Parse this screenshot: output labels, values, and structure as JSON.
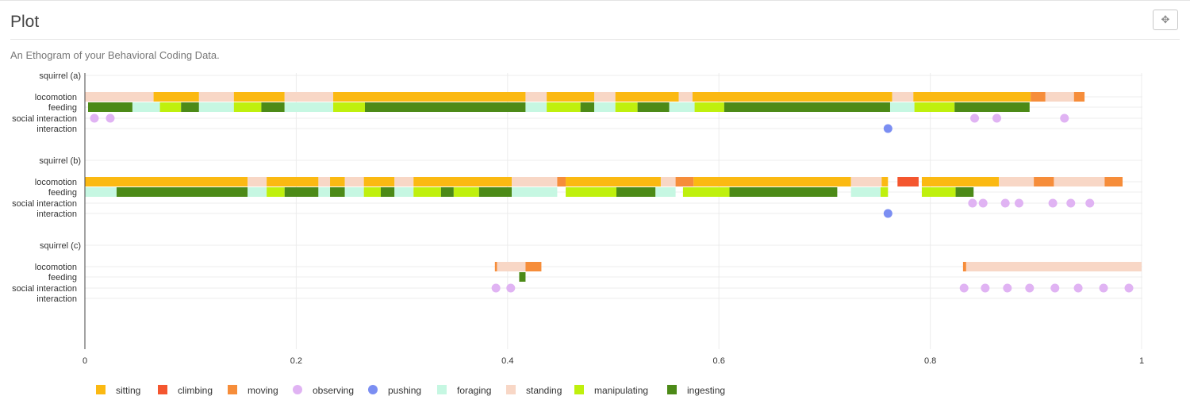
{
  "panel": {
    "title": "Plot",
    "subtitle": "An Ethogram of your Behavioral Coding Data.",
    "expand_icon": "move-arrows-icon"
  },
  "chart_data": {
    "type": "ethogram",
    "xlim": [
      0,
      1
    ],
    "x_ticks": [
      0,
      0.2,
      0.4,
      0.6,
      0.8,
      1
    ],
    "x_tick_labels": [
      "0",
      "0.2",
      "0.4",
      "0.6",
      "0.8",
      "1"
    ],
    "grid": true,
    "legend_placement": "bottom",
    "colors": {
      "sitting": "#fbb912",
      "climbing": "#f4562f",
      "moving": "#f68d3a",
      "observing": "#e0b3f3",
      "pushing": "#7b8ef2",
      "foraging": "#c6f7e2",
      "standing": "#f8d7c6",
      "manipulating": "#bff00d",
      "ingesting": "#4c8a17"
    },
    "legend": [
      {
        "key": "sitting",
        "label": "sitting",
        "shape": "square"
      },
      {
        "key": "climbing",
        "label": "climbing",
        "shape": "square"
      },
      {
        "key": "moving",
        "label": "moving",
        "shape": "square"
      },
      {
        "key": "observing",
        "label": "observing",
        "shape": "circle"
      },
      {
        "key": "pushing",
        "label": "pushing",
        "shape": "circle"
      },
      {
        "key": "foraging",
        "label": "foraging",
        "shape": "square"
      },
      {
        "key": "standing",
        "label": "standing",
        "shape": "square"
      },
      {
        "key": "manipulating",
        "label": "manipulating",
        "shape": "square"
      },
      {
        "key": "ingesting",
        "label": "ingesting",
        "shape": "square"
      }
    ],
    "subjects": [
      {
        "name": "squirrel (a)",
        "rows": [
          "locomotion",
          "feeding",
          "social interaction",
          "interaction"
        ],
        "bars": {
          "locomotion": [
            [
              0.0,
              0.065,
              "standing"
            ],
            [
              0.065,
              0.108,
              "sitting"
            ],
            [
              0.108,
              0.141,
              "standing"
            ],
            [
              0.141,
              0.189,
              "sitting"
            ],
            [
              0.189,
              0.235,
              "standing"
            ],
            [
              0.235,
              0.417,
              "sitting"
            ],
            [
              0.417,
              0.437,
              "standing"
            ],
            [
              0.437,
              0.482,
              "sitting"
            ],
            [
              0.482,
              0.502,
              "standing"
            ],
            [
              0.502,
              0.562,
              "sitting"
            ],
            [
              0.562,
              0.575,
              "standing"
            ],
            [
              0.575,
              0.764,
              "sitting"
            ],
            [
              0.764,
              0.784,
              "standing"
            ],
            [
              0.784,
              0.895,
              "sitting"
            ],
            [
              0.895,
              0.909,
              "moving"
            ],
            [
              0.909,
              0.936,
              "standing"
            ],
            [
              0.936,
              0.946,
              "moving"
            ]
          ],
          "feeding": [
            [
              0.003,
              0.045,
              "ingesting"
            ],
            [
              0.045,
              0.071,
              "foraging"
            ],
            [
              0.071,
              0.091,
              "manipulating"
            ],
            [
              0.091,
              0.108,
              "ingesting"
            ],
            [
              0.108,
              0.141,
              "foraging"
            ],
            [
              0.141,
              0.167,
              "manipulating"
            ],
            [
              0.167,
              0.189,
              "ingesting"
            ],
            [
              0.189,
              0.235,
              "foraging"
            ],
            [
              0.235,
              0.265,
              "manipulating"
            ],
            [
              0.265,
              0.417,
              "ingesting"
            ],
            [
              0.417,
              0.437,
              "foraging"
            ],
            [
              0.437,
              0.469,
              "manipulating"
            ],
            [
              0.469,
              0.482,
              "ingesting"
            ],
            [
              0.482,
              0.502,
              "foraging"
            ],
            [
              0.502,
              0.523,
              "manipulating"
            ],
            [
              0.523,
              0.553,
              "ingesting"
            ],
            [
              0.553,
              0.577,
              "foraging"
            ],
            [
              0.577,
              0.605,
              "manipulating"
            ],
            [
              0.605,
              0.762,
              "ingesting"
            ],
            [
              0.762,
              0.785,
              "foraging"
            ],
            [
              0.785,
              0.823,
              "manipulating"
            ],
            [
              0.823,
              0.894,
              "ingesting"
            ]
          ]
        },
        "points": {
          "social interaction": [
            [
              0.009,
              "observing"
            ],
            [
              0.024,
              "observing"
            ],
            [
              0.842,
              "observing"
            ],
            [
              0.863,
              "observing"
            ],
            [
              0.927,
              "observing"
            ]
          ],
          "interaction": [
            [
              0.76,
              "pushing"
            ]
          ]
        }
      },
      {
        "name": "squirrel (b)",
        "rows": [
          "locomotion",
          "feeding",
          "social interaction",
          "interaction"
        ],
        "bars": {
          "locomotion": [
            [
              0.0,
              0.154,
              "sitting"
            ],
            [
              0.154,
              0.172,
              "standing"
            ],
            [
              0.172,
              0.221,
              "sitting"
            ],
            [
              0.221,
              0.232,
              "standing"
            ],
            [
              0.232,
              0.246,
              "sitting"
            ],
            [
              0.246,
              0.264,
              "standing"
            ],
            [
              0.264,
              0.293,
              "sitting"
            ],
            [
              0.293,
              0.311,
              "standing"
            ],
            [
              0.311,
              0.404,
              "sitting"
            ],
            [
              0.404,
              0.447,
              "standing"
            ],
            [
              0.447,
              0.455,
              "moving"
            ],
            [
              0.455,
              0.545,
              "sitting"
            ],
            [
              0.545,
              0.559,
              "standing"
            ],
            [
              0.559,
              0.576,
              "moving"
            ],
            [
              0.576,
              0.725,
              "sitting"
            ],
            [
              0.725,
              0.754,
              "standing"
            ],
            [
              0.754,
              0.76,
              "sitting"
            ],
            [
              0.769,
              0.789,
              "climbing"
            ],
            [
              0.792,
              0.865,
              "sitting"
            ],
            [
              0.865,
              0.898,
              "standing"
            ],
            [
              0.898,
              0.917,
              "moving"
            ],
            [
              0.917,
              0.965,
              "standing"
            ],
            [
              0.965,
              0.982,
              "moving"
            ]
          ],
          "feeding": [
            [
              0.0,
              0.03,
              "foraging"
            ],
            [
              0.03,
              0.154,
              "ingesting"
            ],
            [
              0.154,
              0.172,
              "foraging"
            ],
            [
              0.172,
              0.189,
              "manipulating"
            ],
            [
              0.189,
              0.221,
              "ingesting"
            ],
            [
              0.221,
              0.232,
              "foraging"
            ],
            [
              0.232,
              0.246,
              "ingesting"
            ],
            [
              0.246,
              0.264,
              "foraging"
            ],
            [
              0.264,
              0.28,
              "manipulating"
            ],
            [
              0.28,
              0.293,
              "ingesting"
            ],
            [
              0.293,
              0.311,
              "foraging"
            ],
            [
              0.311,
              0.337,
              "manipulating"
            ],
            [
              0.337,
              0.349,
              "ingesting"
            ],
            [
              0.349,
              0.373,
              "manipulating"
            ],
            [
              0.373,
              0.404,
              "ingesting"
            ],
            [
              0.404,
              0.447,
              "foraging"
            ],
            [
              0.455,
              0.503,
              "manipulating"
            ],
            [
              0.503,
              0.54,
              "ingesting"
            ],
            [
              0.54,
              0.559,
              "foraging"
            ],
            [
              0.566,
              0.61,
              "manipulating"
            ],
            [
              0.61,
              0.712,
              "ingesting"
            ],
            [
              0.725,
              0.753,
              "foraging"
            ],
            [
              0.753,
              0.76,
              "manipulating"
            ],
            [
              0.792,
              0.824,
              "manipulating"
            ],
            [
              0.824,
              0.841,
              "ingesting"
            ]
          ]
        },
        "points": {
          "social interaction": [
            [
              0.84,
              "observing"
            ],
            [
              0.85,
              "observing"
            ],
            [
              0.871,
              "observing"
            ],
            [
              0.884,
              "observing"
            ],
            [
              0.916,
              "observing"
            ],
            [
              0.933,
              "observing"
            ],
            [
              0.951,
              "observing"
            ]
          ],
          "interaction": [
            [
              0.76,
              "pushing"
            ]
          ]
        }
      },
      {
        "name": "squirrel (c)",
        "rows": [
          "locomotion",
          "feeding",
          "social interaction",
          "interaction"
        ],
        "bars": {
          "locomotion": [
            [
              0.388,
              0.39,
              "moving"
            ],
            [
              0.39,
              0.417,
              "standing"
            ],
            [
              0.417,
              0.432,
              "moving"
            ],
            [
              0.831,
              0.834,
              "moving"
            ],
            [
              0.834,
              1.0,
              "standing"
            ]
          ],
          "feeding": [
            [
              0.411,
              0.417,
              "ingesting"
            ]
          ]
        },
        "points": {
          "social interaction": [
            [
              0.389,
              "observing"
            ],
            [
              0.403,
              "observing"
            ],
            [
              0.832,
              "observing"
            ],
            [
              0.852,
              "observing"
            ],
            [
              0.873,
              "observing"
            ],
            [
              0.894,
              "observing"
            ],
            [
              0.918,
              "observing"
            ],
            [
              0.94,
              "observing"
            ],
            [
              0.964,
              "observing"
            ],
            [
              0.988,
              "observing"
            ]
          ],
          "interaction": []
        }
      }
    ]
  }
}
